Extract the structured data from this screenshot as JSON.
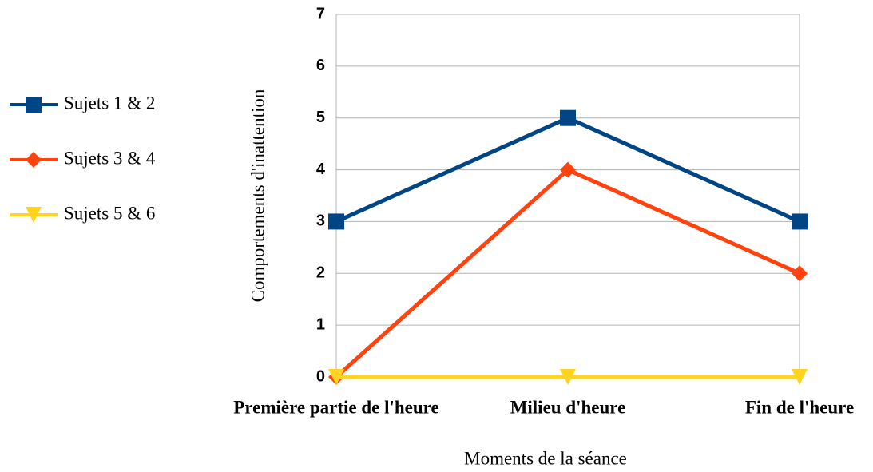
{
  "chart_data": {
    "type": "line",
    "xlabel": "Moments de la séance",
    "ylabel": "Comportements d'inattention",
    "categories": [
      "Première partie de l'heure",
      "Milieu d'heure",
      "Fin de l'heure"
    ],
    "series": [
      {
        "name": "Sujets 1 & 2",
        "color": "#004586",
        "marker": "square",
        "values": [
          3,
          5,
          3
        ]
      },
      {
        "name": "Sujets 3 & 4",
        "color": "#ff420e",
        "marker": "diamond",
        "values": [
          0,
          4,
          2
        ]
      },
      {
        "name": "Sujets 5 & 6",
        "color": "#ffd320",
        "marker": "triangle-down",
        "values": [
          0,
          0,
          0
        ]
      }
    ],
    "ylim": [
      0,
      7
    ],
    "yticks": [
      0,
      1,
      2,
      3,
      4,
      5,
      6,
      7
    ],
    "grid": true,
    "legend": "left"
  }
}
